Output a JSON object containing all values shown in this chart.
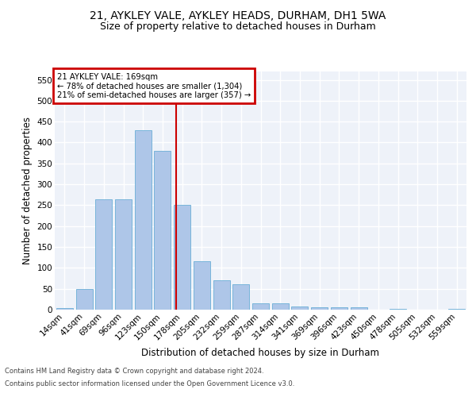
{
  "title1": "21, AYKLEY VALE, AYKLEY HEADS, DURHAM, DH1 5WA",
  "title2": "Size of property relative to detached houses in Durham",
  "xlabel": "Distribution of detached houses by size in Durham",
  "ylabel": "Number of detached properties",
  "categories": [
    "14sqm",
    "41sqm",
    "69sqm",
    "96sqm",
    "123sqm",
    "150sqm",
    "178sqm",
    "205sqm",
    "232sqm",
    "259sqm",
    "287sqm",
    "314sqm",
    "341sqm",
    "369sqm",
    "396sqm",
    "423sqm",
    "450sqm",
    "478sqm",
    "505sqm",
    "532sqm",
    "559sqm"
  ],
  "values": [
    3,
    50,
    265,
    265,
    430,
    380,
    250,
    115,
    70,
    60,
    15,
    15,
    7,
    5,
    6,
    5,
    0,
    2,
    0,
    0,
    2
  ],
  "bar_color": "#aec6e8",
  "bar_edge_color": "#6aaed6",
  "vline_color": "#cc0000",
  "annotation_title": "21 AYKLEY VALE: 169sqm",
  "annotation_line1": "← 78% of detached houses are smaller (1,304)",
  "annotation_line2": "21% of semi-detached houses are larger (357) →",
  "annotation_box_color": "#cc0000",
  "footer1": "Contains HM Land Registry data © Crown copyright and database right 2024.",
  "footer2": "Contains public sector information licensed under the Open Government Licence v3.0.",
  "ylim": [
    0,
    570
  ],
  "yticks": [
    0,
    50,
    100,
    150,
    200,
    250,
    300,
    350,
    400,
    450,
    500,
    550
  ],
  "bg_color": "#eef2f9",
  "grid_color": "#ffffff",
  "title_fontsize": 10,
  "subtitle_fontsize": 9,
  "axis_label_fontsize": 8.5,
  "tick_fontsize": 7.5
}
